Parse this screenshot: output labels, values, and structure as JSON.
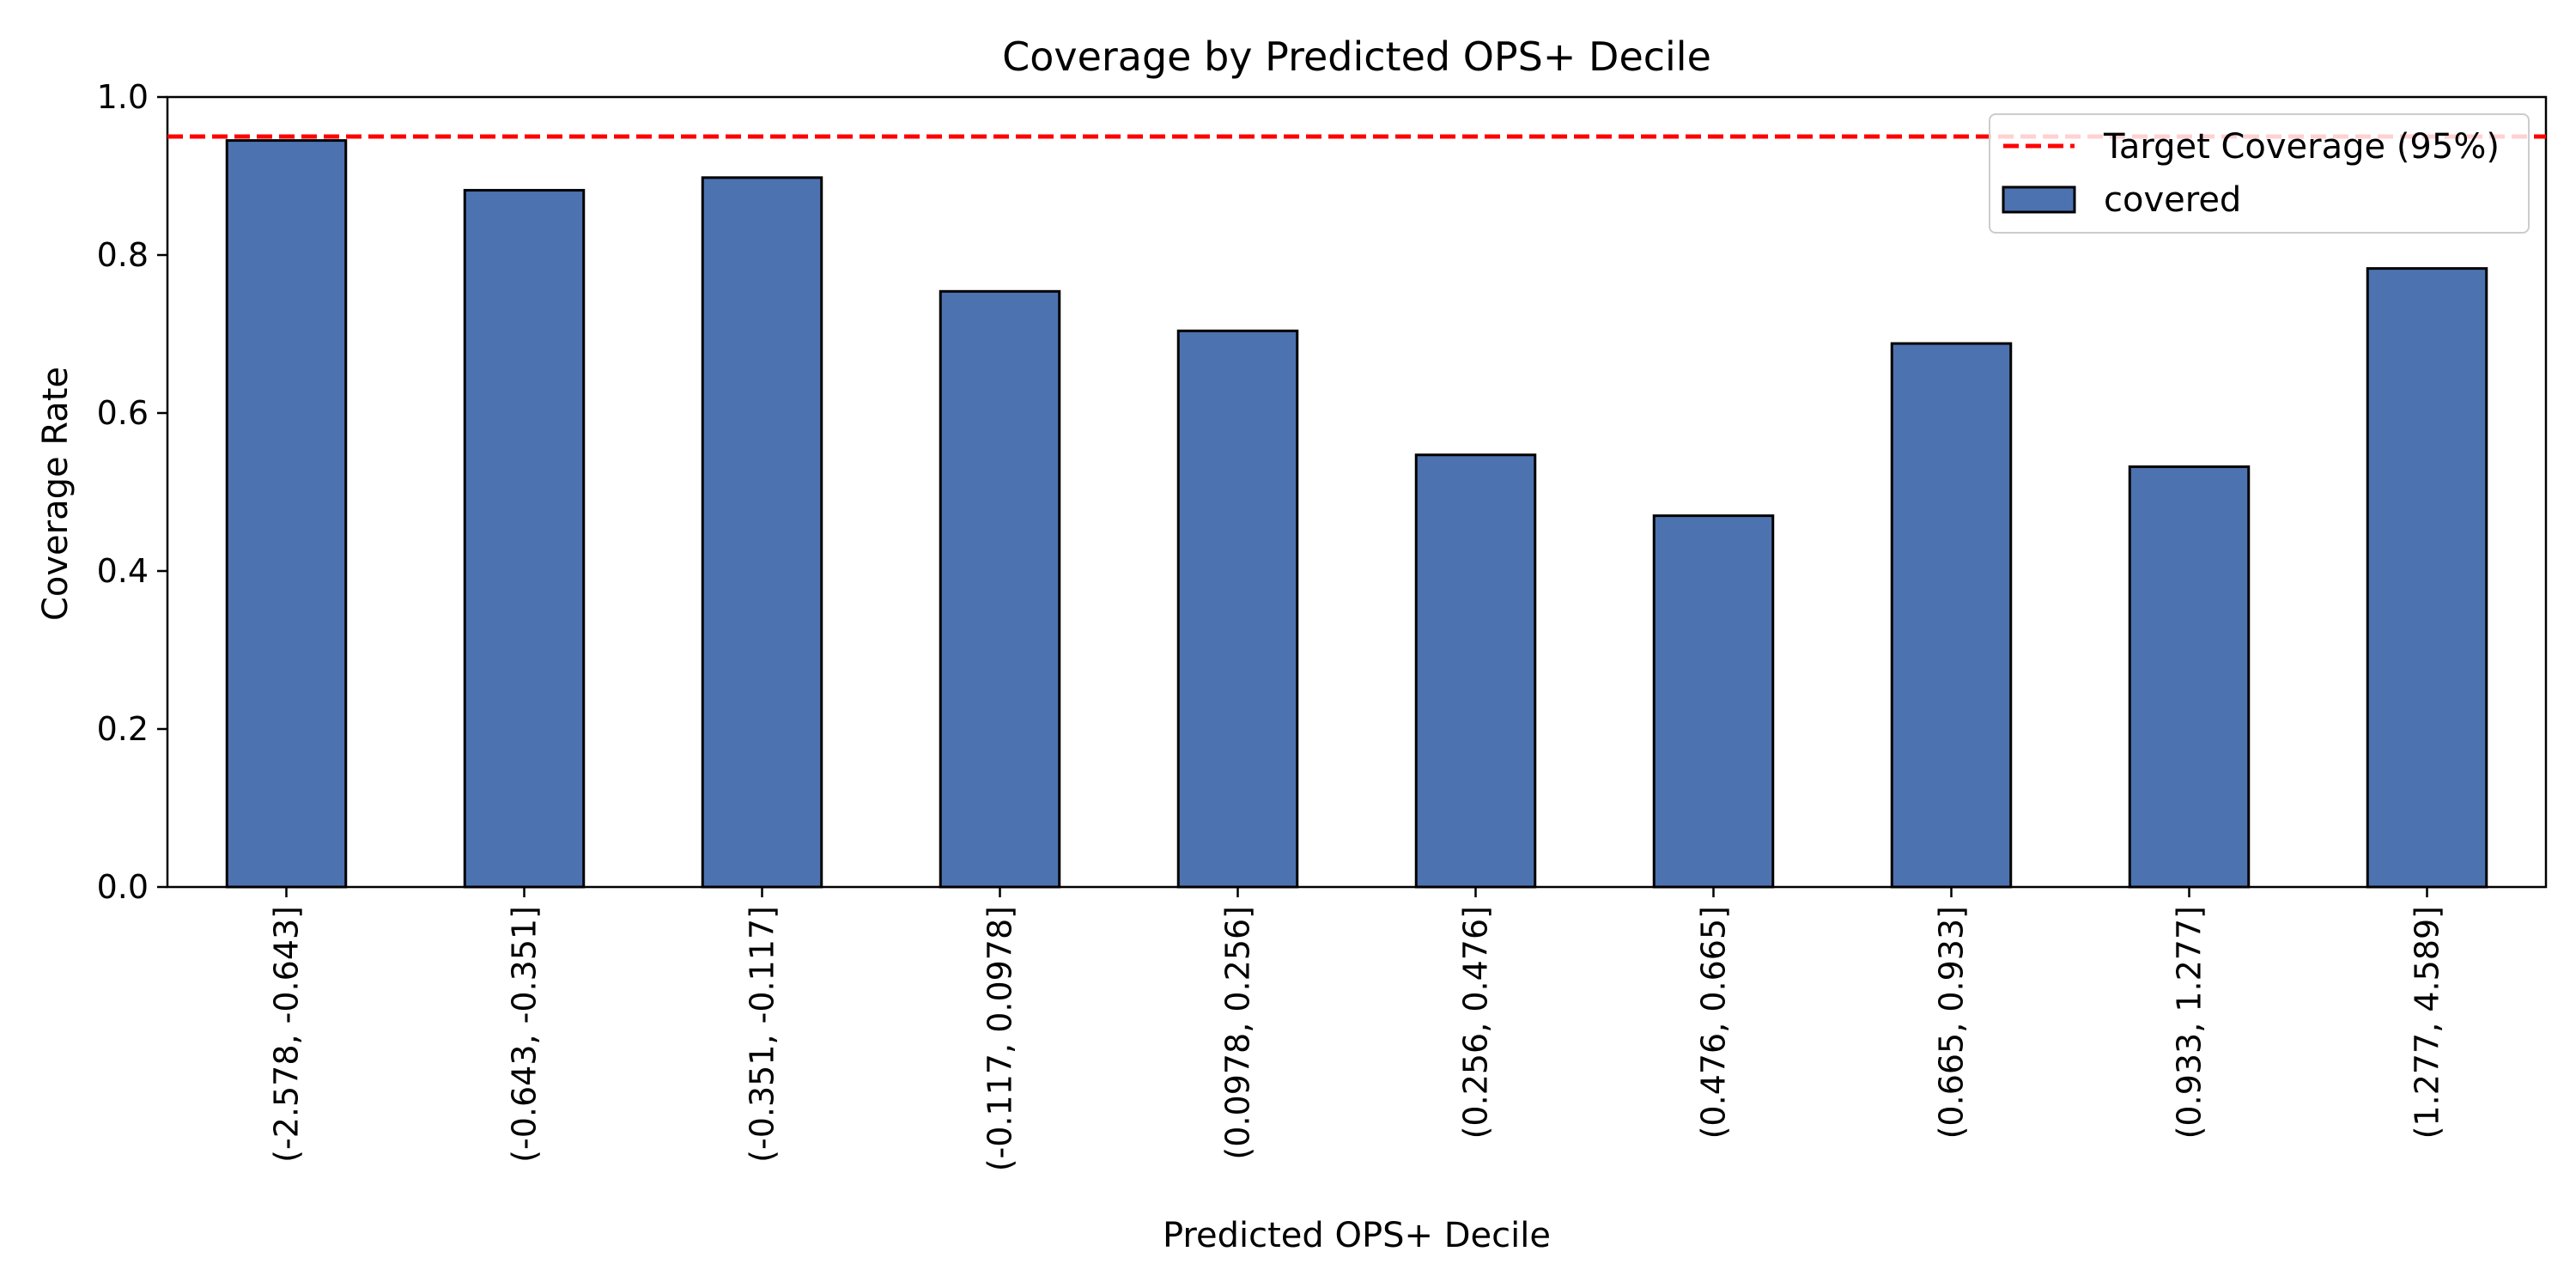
{
  "chart_data": {
    "type": "bar",
    "title": "Coverage by Predicted OPS+ Decile",
    "xlabel": "Predicted OPS+ Decile",
    "ylabel": "Coverage Rate",
    "ylim": [
      0,
      1.0
    ],
    "yticks": [
      "0.0",
      "0.2",
      "0.4",
      "0.6",
      "0.8",
      "1.0"
    ],
    "ytick_values": [
      0,
      0.2,
      0.4,
      0.6,
      0.8,
      1.0
    ],
    "categories": [
      "(-2.578, -0.643]",
      "(-0.643, -0.351]",
      "(-0.351, -0.117]",
      "(-0.117, 0.0978]",
      "(0.0978, 0.256]",
      "(0.256, 0.476]",
      "(0.476, 0.665]",
      "(0.665, 0.933]",
      "(0.933, 1.277]",
      "(1.277, 4.589]"
    ],
    "series": [
      {
        "name": "covered",
        "color": "#4c72b0",
        "values": [
          0.945,
          0.882,
          0.898,
          0.754,
          0.704,
          0.547,
          0.47,
          0.688,
          0.532,
          0.783
        ]
      }
    ],
    "reference_line": {
      "label": "Target Coverage (95%)",
      "value": 0.95,
      "color": "#ff0000",
      "style": "dashed"
    },
    "legend_position": "top-right",
    "grid": false
  }
}
